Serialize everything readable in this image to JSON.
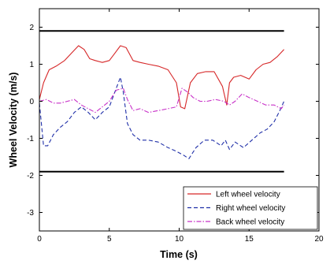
{
  "chart_data": {
    "type": "line",
    "title": "",
    "xlabel": "Time (s)",
    "ylabel": "Wheel Velocity (m/s)",
    "xlim": [
      0,
      20
    ],
    "ylim": [
      -3.5,
      2.5
    ],
    "xticks": [
      0,
      5,
      10,
      15,
      20
    ],
    "yticks": [
      -3,
      -2,
      -1,
      0,
      1,
      2
    ],
    "xtick_labels": [
      "0",
      "5",
      "10",
      "15",
      "20"
    ],
    "ytick_labels": [
      "-3",
      "-2",
      "-1",
      "0",
      "1",
      "2"
    ],
    "grid": false,
    "legend_position": "bottom-right",
    "reference_lines": [
      {
        "y": 1.9,
        "x_range": [
          0,
          17.5
        ],
        "color": "#000000"
      },
      {
        "y": -1.9,
        "x_range": [
          0,
          17.5
        ],
        "color": "#000000"
      }
    ],
    "series": [
      {
        "name": "Left wheel velocity",
        "color": "#d62728",
        "style": "solid",
        "x": [
          0,
          0.3,
          0.7,
          1.2,
          1.8,
          2.3,
          2.8,
          3.2,
          3.6,
          4.0,
          4.5,
          5.0,
          5.4,
          5.8,
          6.2,
          6.7,
          7.2,
          7.8,
          8.5,
          9.2,
          9.8,
          10.1,
          10.4,
          10.8,
          11.3,
          11.9,
          12.5,
          13.1,
          13.4,
          13.6,
          13.9,
          14.4,
          15.0,
          15.5,
          16.0,
          16.5,
          17.0,
          17.5
        ],
        "y": [
          0.05,
          0.5,
          0.85,
          0.95,
          1.1,
          1.3,
          1.5,
          1.4,
          1.15,
          1.1,
          1.05,
          1.1,
          1.3,
          1.5,
          1.45,
          1.1,
          1.05,
          1.0,
          0.95,
          0.85,
          0.5,
          -0.15,
          -0.2,
          0.5,
          0.75,
          0.8,
          0.8,
          0.4,
          -0.1,
          0.5,
          0.65,
          0.7,
          0.6,
          0.85,
          1.0,
          1.05,
          1.2,
          1.4
        ]
      },
      {
        "name": "Right wheel velocity",
        "color": "#1f2fa8",
        "style": "dashed",
        "x": [
          0,
          0.3,
          0.6,
          1.0,
          1.5,
          2.0,
          2.5,
          3.0,
          3.5,
          4.0,
          4.5,
          5.0,
          5.5,
          5.8,
          6.0,
          6.3,
          6.7,
          7.2,
          7.8,
          8.5,
          9.2,
          9.8,
          10.3,
          10.7,
          11.2,
          11.8,
          12.4,
          13.0,
          13.3,
          13.6,
          14.0,
          14.6,
          15.2,
          15.8,
          16.3,
          16.8,
          17.2,
          17.5
        ],
        "y": [
          -0.05,
          -1.2,
          -1.2,
          -0.9,
          -0.7,
          -0.55,
          -0.3,
          -0.15,
          -0.3,
          -0.5,
          -0.3,
          -0.15,
          0.35,
          0.65,
          0.25,
          -0.6,
          -0.9,
          -1.05,
          -1.05,
          -1.1,
          -1.25,
          -1.35,
          -1.45,
          -1.55,
          -1.25,
          -1.05,
          -1.05,
          -1.2,
          -1.05,
          -1.3,
          -1.1,
          -1.25,
          -1.05,
          -0.85,
          -0.75,
          -0.55,
          -0.25,
          0.0
        ]
      },
      {
        "name": "Back wheel velocity",
        "color": "#c830c8",
        "style": "dashdot",
        "x": [
          0,
          0.5,
          1.0,
          1.5,
          2.0,
          2.5,
          3.0,
          3.5,
          4.0,
          4.5,
          5.0,
          5.5,
          6.0,
          6.3,
          6.7,
          7.2,
          7.8,
          8.5,
          9.2,
          9.8,
          10.2,
          10.6,
          11.0,
          11.5,
          12.0,
          12.6,
          13.2,
          13.6,
          14.0,
          14.5,
          15.0,
          15.6,
          16.2,
          16.8,
          17.3,
          17.5
        ],
        "y": [
          0.0,
          0.05,
          -0.05,
          -0.05,
          0.0,
          0.05,
          -0.1,
          -0.2,
          -0.3,
          -0.15,
          0.0,
          0.3,
          0.35,
          0.05,
          -0.25,
          -0.2,
          -0.3,
          -0.25,
          -0.2,
          -0.15,
          0.35,
          0.25,
          0.1,
          0.0,
          0.0,
          0.05,
          0.0,
          -0.1,
          0.0,
          0.2,
          0.1,
          0.0,
          -0.1,
          -0.1,
          -0.2,
          -0.1
        ]
      }
    ]
  }
}
